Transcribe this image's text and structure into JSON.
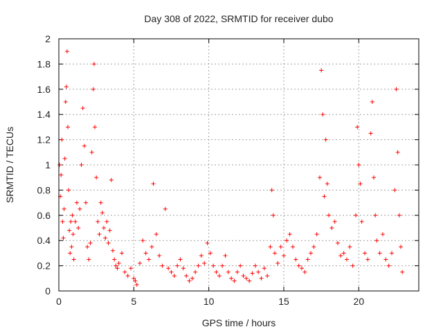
{
  "chart_data": {
    "type": "scatter",
    "title": "Day 308 of 2022, SRMTID for receiver dubo",
    "xlabel": "GPS time / hours",
    "ylabel": "SRMTID / TECUs",
    "xlim": [
      0,
      24
    ],
    "ylim": [
      0,
      2
    ],
    "x_ticks": [
      0,
      5,
      10,
      15,
      20
    ],
    "x_tick_labels": [
      "0",
      "5",
      "10",
      "15",
      "20"
    ],
    "y_ticks": [
      0,
      0.2,
      0.4,
      0.6,
      0.8,
      1,
      1.2,
      1.4,
      1.6,
      1.8,
      2
    ],
    "y_tick_labels": [
      "0",
      "0.2",
      "0.4",
      "0.6",
      "0.8",
      "1",
      "1.2",
      "1.4",
      "1.6",
      "1.8",
      "2"
    ],
    "grid": true,
    "marker": "+",
    "color": "#ff0000",
    "series": [
      {
        "name": "SRMTID",
        "points": [
          [
            0.05,
            1.0
          ],
          [
            0.1,
            0.75
          ],
          [
            0.15,
            0.92
          ],
          [
            0.2,
            1.2
          ],
          [
            0.25,
            0.55
          ],
          [
            0.3,
            0.42
          ],
          [
            0.35,
            0.65
          ],
          [
            0.4,
            1.05
          ],
          [
            0.45,
            1.5
          ],
          [
            0.5,
            1.62
          ],
          [
            0.55,
            1.9
          ],
          [
            0.6,
            1.3
          ],
          [
            0.65,
            0.8
          ],
          [
            0.7,
            0.48
          ],
          [
            0.75,
            0.3
          ],
          [
            0.8,
            0.55
          ],
          [
            0.85,
            0.35
          ],
          [
            0.9,
            0.6
          ],
          [
            0.95,
            0.45
          ],
          [
            1.0,
            0.25
          ],
          [
            1.1,
            0.55
          ],
          [
            1.2,
            0.7
          ],
          [
            1.3,
            0.5
          ],
          [
            1.4,
            0.65
          ],
          [
            1.5,
            1.0
          ],
          [
            1.6,
            1.45
          ],
          [
            1.7,
            1.15
          ],
          [
            1.8,
            0.7
          ],
          [
            1.9,
            0.35
          ],
          [
            2.0,
            0.25
          ],
          [
            2.1,
            0.38
          ],
          [
            2.2,
            1.1
          ],
          [
            2.3,
            1.6
          ],
          [
            2.35,
            1.8
          ],
          [
            2.4,
            1.3
          ],
          [
            2.5,
            0.9
          ],
          [
            2.6,
            0.55
          ],
          [
            2.7,
            0.45
          ],
          [
            2.8,
            0.7
          ],
          [
            2.9,
            0.62
          ],
          [
            3.0,
            0.5
          ],
          [
            3.1,
            0.42
          ],
          [
            3.2,
            0.55
          ],
          [
            3.3,
            0.38
          ],
          [
            3.4,
            0.48
          ],
          [
            3.5,
            0.88
          ],
          [
            3.6,
            0.32
          ],
          [
            3.7,
            0.25
          ],
          [
            3.8,
            0.2
          ],
          [
            3.9,
            0.18
          ],
          [
            4.0,
            0.22
          ],
          [
            4.2,
            0.3
          ],
          [
            4.4,
            0.15
          ],
          [
            4.6,
            0.12
          ],
          [
            4.8,
            0.18
          ],
          [
            5.0,
            0.1
          ],
          [
            5.1,
            0.08
          ],
          [
            5.2,
            0.05
          ],
          [
            5.4,
            0.22
          ],
          [
            5.6,
            0.4
          ],
          [
            5.8,
            0.3
          ],
          [
            6.0,
            0.25
          ],
          [
            6.2,
            0.35
          ],
          [
            6.3,
            0.85
          ],
          [
            6.5,
            0.45
          ],
          [
            6.7,
            0.28
          ],
          [
            6.9,
            0.2
          ],
          [
            7.1,
            0.65
          ],
          [
            7.3,
            0.18
          ],
          [
            7.5,
            0.15
          ],
          [
            7.7,
            0.12
          ],
          [
            7.9,
            0.2
          ],
          [
            8.1,
            0.25
          ],
          [
            8.3,
            0.18
          ],
          [
            8.5,
            0.12
          ],
          [
            8.7,
            0.08
          ],
          [
            8.9,
            0.1
          ],
          [
            9.1,
            0.15
          ],
          [
            9.3,
            0.2
          ],
          [
            9.5,
            0.28
          ],
          [
            9.7,
            0.22
          ],
          [
            9.9,
            0.38
          ],
          [
            10.1,
            0.3
          ],
          [
            10.3,
            0.2
          ],
          [
            10.5,
            0.15
          ],
          [
            10.7,
            0.12
          ],
          [
            10.9,
            0.2
          ],
          [
            11.1,
            0.28
          ],
          [
            11.3,
            0.15
          ],
          [
            11.5,
            0.1
          ],
          [
            11.7,
            0.08
          ],
          [
            11.9,
            0.15
          ],
          [
            12.1,
            0.2
          ],
          [
            12.3,
            0.12
          ],
          [
            12.5,
            0.1
          ],
          [
            12.7,
            0.08
          ],
          [
            12.9,
            0.14
          ],
          [
            13.1,
            0.2
          ],
          [
            13.3,
            0.15
          ],
          [
            13.5,
            0.1
          ],
          [
            13.7,
            0.18
          ],
          [
            13.9,
            0.12
          ],
          [
            14.1,
            0.35
          ],
          [
            14.2,
            0.8
          ],
          [
            14.3,
            0.6
          ],
          [
            14.4,
            0.3
          ],
          [
            14.6,
            0.22
          ],
          [
            14.8,
            0.35
          ],
          [
            15.0,
            0.28
          ],
          [
            15.2,
            0.4
          ],
          [
            15.4,
            0.45
          ],
          [
            15.6,
            0.35
          ],
          [
            15.8,
            0.25
          ],
          [
            16.0,
            0.2
          ],
          [
            16.2,
            0.18
          ],
          [
            16.4,
            0.15
          ],
          [
            16.6,
            0.25
          ],
          [
            16.8,
            0.3
          ],
          [
            17.0,
            0.35
          ],
          [
            17.2,
            0.45
          ],
          [
            17.4,
            0.9
          ],
          [
            17.5,
            1.75
          ],
          [
            17.6,
            1.4
          ],
          [
            17.7,
            0.75
          ],
          [
            17.8,
            1.2
          ],
          [
            17.9,
            0.85
          ],
          [
            18.0,
            0.6
          ],
          [
            18.2,
            0.5
          ],
          [
            18.4,
            0.55
          ],
          [
            18.6,
            0.38
          ],
          [
            18.8,
            0.28
          ],
          [
            19.0,
            0.3
          ],
          [
            19.2,
            0.25
          ],
          [
            19.4,
            0.35
          ],
          [
            19.6,
            0.2
          ],
          [
            19.8,
            0.6
          ],
          [
            19.9,
            1.3
          ],
          [
            20.0,
            1.0
          ],
          [
            20.1,
            0.85
          ],
          [
            20.2,
            0.55
          ],
          [
            20.4,
            0.3
          ],
          [
            20.6,
            0.25
          ],
          [
            20.8,
            1.25
          ],
          [
            20.9,
            1.5
          ],
          [
            21.0,
            0.9
          ],
          [
            21.1,
            0.6
          ],
          [
            21.2,
            0.4
          ],
          [
            21.4,
            0.3
          ],
          [
            21.6,
            0.45
          ],
          [
            21.8,
            0.25
          ],
          [
            22.0,
            0.2
          ],
          [
            22.2,
            0.3
          ],
          [
            22.4,
            0.8
          ],
          [
            22.5,
            1.6
          ],
          [
            22.6,
            1.1
          ],
          [
            22.7,
            0.6
          ],
          [
            22.8,
            0.35
          ],
          [
            22.9,
            0.15
          ]
        ]
      }
    ]
  }
}
